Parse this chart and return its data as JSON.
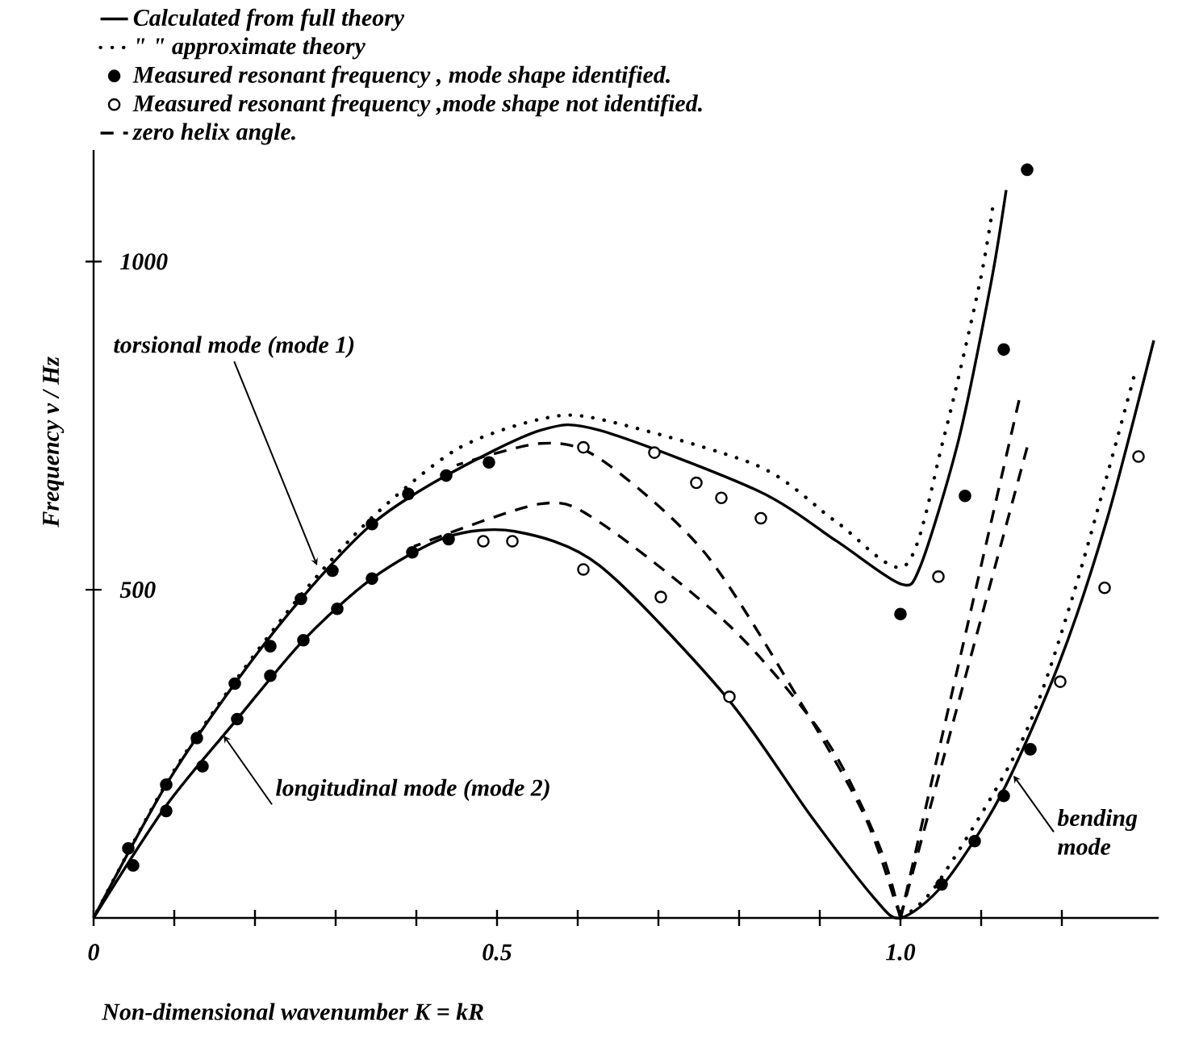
{
  "chart_data": {
    "type": "line",
    "xlabel": "Non-dimensional wavenumber K = kR",
    "ylabel": "Frequency  ν / Hz",
    "xlim": [
      0,
      1.32
    ],
    "ylim": [
      0,
      1170
    ],
    "xticks": [
      {
        "value": 0,
        "label": "0"
      },
      {
        "value": 0.1,
        "label": null
      },
      {
        "value": 0.2,
        "label": null
      },
      {
        "value": 0.3,
        "label": null
      },
      {
        "value": 0.4,
        "label": null
      },
      {
        "value": 0.5,
        "label": "0.5"
      },
      {
        "value": 0.6,
        "label": null
      },
      {
        "value": 0.7,
        "label": null
      },
      {
        "value": 0.8,
        "label": null
      },
      {
        "value": 0.9,
        "label": null
      },
      {
        "value": 1.0,
        "label": "1.0"
      },
      {
        "value": 1.1,
        "label": null
      },
      {
        "value": 1.2,
        "label": null
      }
    ],
    "yticks": [
      500,
      1000
    ],
    "legend": "top",
    "series": [
      {
        "name": "Calculated from full theory",
        "line_style": "solid",
        "color": "#000000",
        "x": [
          0,
          0.09,
          0.175,
          0.257,
          0.345,
          0.437,
          0.554,
          0.627,
          0.823,
          0.921,
          1.0,
          1.025,
          1.072,
          1.112,
          1.131
        ],
        "values": [
          0,
          203,
          357,
          486,
          600,
          674,
          743,
          743,
          651,
          574,
          509,
          537,
          728,
          966,
          1109
        ]
      },
      {
        "type": "line",
        "line_style": "solid",
        "color": "#000000",
        "x": [
          0,
          0.09,
          0.178,
          0.26,
          0.345,
          0.437,
          0.522,
          0.627,
          0.784,
          0.888,
          0.967,
          1.0,
          1.053,
          1.124,
          1.196,
          1.255,
          1.314
        ],
        "values": [
          0,
          171,
          303,
          423,
          517,
          580,
          589,
          537,
          337,
          157,
          31,
          0,
          51,
          186,
          386,
          603,
          880
        ]
      },
      {
        "name": "\"          \" approximate theory",
        "type": "line",
        "line_style": "dotted",
        "color": "#000000",
        "x": [
          0,
          0.09,
          0.175,
          0.257,
          0.345,
          0.45,
          0.554,
          0.627,
          0.823,
          0.921,
          1.006,
          1.053,
          1.098,
          1.114
        ],
        "values": [
          0,
          205,
          360,
          492,
          610,
          714,
          760,
          760,
          689,
          603,
          537,
          728,
          966,
          1080
        ]
      },
      {
        "type": "line",
        "line_style": "dotted",
        "color": "#000000",
        "x": [
          1.0,
          1.045,
          1.151,
          1.216,
          1.289
        ],
        "values": [
          0,
          51,
          271,
          500,
          823
        ]
      },
      {
        "name": "Measured resonant frequency , mode shape identified.",
        "type": "scatter",
        "marker": "circle",
        "color": "#000000",
        "x": [
          0.043,
          0.09,
          0.128,
          0.175,
          0.219,
          0.257,
          0.296,
          0.345,
          0.39,
          0.437,
          0.49,
          0.049,
          0.09,
          0.135,
          0.178,
          0.219,
          0.26,
          0.302,
          0.345,
          0.395,
          0.44,
          1.0,
          1.08,
          1.128,
          1.157,
          1.051,
          1.092,
          1.128,
          1.161
        ],
        "values": [
          106,
          203,
          274,
          357,
          414,
          486,
          529,
          600,
          646,
          674,
          694,
          80,
          163,
          231,
          303,
          369,
          423,
          471,
          517,
          557,
          577,
          463,
          643,
          866,
          1140,
          51,
          117,
          186,
          257
        ]
      },
      {
        "name": "Measured resonant frequency ,mode shape not identified.",
        "type": "scatter",
        "marker": "circle",
        "color": "#ffffff",
        "x": [
          0.483,
          0.519,
          0.607,
          0.607,
          0.695,
          0.747,
          0.778,
          0.827,
          0.703,
          0.788,
          1.047,
          1.198,
          1.253,
          1.295
        ],
        "values": [
          574,
          574,
          531,
          717,
          709,
          663,
          640,
          609,
          489,
          337,
          520,
          360,
          503,
          703
        ]
      },
      {
        "name": "zero helix angle.",
        "type": "line",
        "line_style": "dashed",
        "color": "#000000",
        "x": [
          0.45,
          0.554,
          0.627,
          0.757,
          0.876,
          0.955,
          0.994,
          1.0
        ],
        "values": [
          690,
          723,
          700,
          557,
          329,
          157,
          23,
          0
        ]
      },
      {
        "type": "line",
        "line_style": "dashed",
        "color": "#000000",
        "x": [
          0.397,
          0.554,
          0.627,
          0.79,
          0.908,
          0.974,
          1.0
        ],
        "values": [
          566,
          631,
          603,
          443,
          271,
          109,
          0
        ]
      },
      {
        "type": "line",
        "line_style": "dashed",
        "color": "#000000",
        "x": [
          1.0,
          1.147
        ],
        "values": [
          0,
          789
        ]
      },
      {
        "type": "line",
        "line_style": "dashed",
        "color": "#000000",
        "x": [
          1.0,
          1.157
        ],
        "values": [
          0,
          717
        ]
      }
    ],
    "annotations": [
      {
        "text": "torsional mode  (mode 1)",
        "x": 0.277,
        "y": 537
      },
      {
        "text": "longitudinal mode  (mode 2)",
        "x": 0.161,
        "y": 278
      },
      {
        "text": "bending mode",
        "x": 1.14,
        "y": 217
      }
    ]
  }
}
